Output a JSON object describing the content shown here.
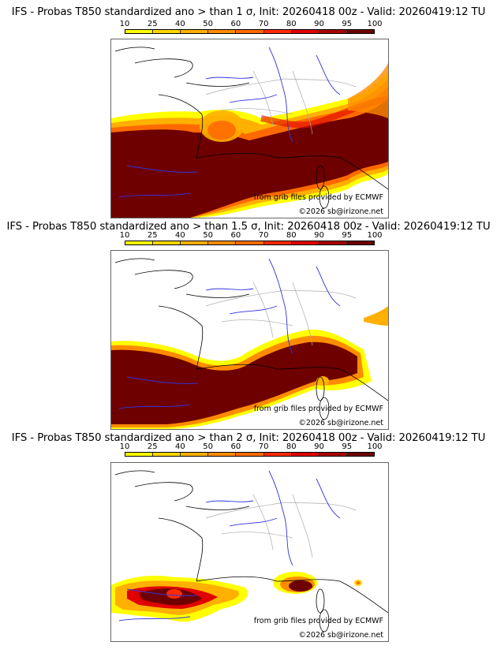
{
  "colorbar": {
    "ticks": [
      "10",
      "25",
      "40",
      "50",
      "60",
      "70",
      "80",
      "90",
      "95",
      "100"
    ],
    "colors": [
      "#ffff00",
      "#ffd700",
      "#ffb000",
      "#ff8c00",
      "#ff6a00",
      "#ff2a00",
      "#e00000",
      "#a80000",
      "#6e0000"
    ]
  },
  "panels": [
    {
      "title": "IFS - Probas T850  standardized ano > than 1 σ, Init: 20260418 00z - Valid: 20260419:12 TU",
      "threshold": "1 σ"
    },
    {
      "title": "IFS - Probas T850  standardized ano > than 1.5 σ, Init: 20260418 00z - Valid: 20260419:12 TU",
      "threshold": "1.5 σ"
    },
    {
      "title": "IFS - Probas T850  standardized ano > than 2 σ, Init: 20260418 00z - Valid: 20260419:12 TU",
      "threshold": "2 σ"
    }
  ],
  "credits": {
    "source": "from grib files provided by ECMWF",
    "copyright": "©2026 sb@irizone.net"
  },
  "map_colors": {
    "coast": "#000000",
    "borders": "#aaaaaa",
    "rivers": "#3333dd",
    "frame": "#666666"
  }
}
